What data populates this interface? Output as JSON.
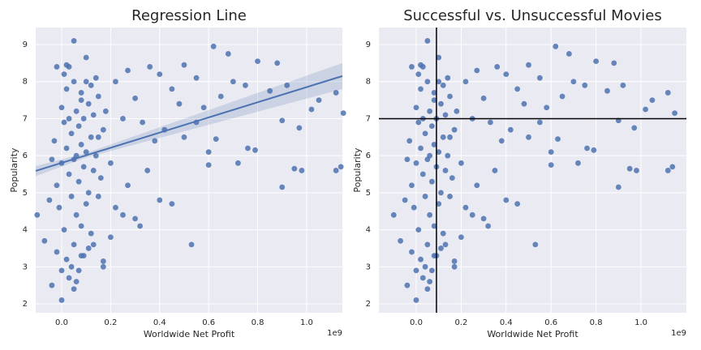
{
  "chart_data": [
    {
      "type": "scatter",
      "title": "Regression Line",
      "x_label": "Worldwide Net Profit",
      "y_label": "Popularity",
      "x_offset_label": "1e9",
      "color": "#4c72b0",
      "grid": true,
      "xlim": [
        -0.106,
        1.146
      ],
      "ylim": [
        1.76,
        9.46
      ],
      "xticks": [
        {
          "value": 0,
          "label": "0.0"
        },
        0.2,
        0.4,
        0.6,
        {
          "value": 0.8,
          "label": "0.8"
        },
        {
          "value": 1,
          "label": "1.0"
        }
      ],
      "yticks": [
        2,
        3,
        4,
        5,
        6,
        7,
        8,
        9
      ],
      "x": [
        0.05,
        0.62,
        0.68,
        0.8,
        0.88,
        0.5,
        0.36,
        0.1,
        -0.02,
        0.02,
        0.27,
        0.4,
        0.55,
        0.7,
        0.75,
        0.85,
        0.92,
        1.05,
        1.12,
        1.15,
        1.02,
        0.9,
        0.97,
        0.65,
        0.58,
        0.45,
        0.48,
        0.3,
        0.25,
        0.33,
        0.38,
        0.42,
        0.5,
        0.55,
        0.6,
        0.63,
        0.76,
        0.79,
        0.6,
        0.9,
        0.95,
        0.98,
        1.12,
        1.14,
        0.72,
        0.45,
        0.53,
        0.4,
        0.3,
        0.32,
        0.25,
        0.2,
        0.17,
        0.17,
        0.11,
        0.13,
        -0.1,
        -0.07,
        -0.04,
        0.0,
        0.05,
        0.03,
        0.08,
        0.07,
        0.35,
        0.27,
        0.22,
        0.2,
        0.15,
        0.18,
        0.12,
        0.14,
        0.22,
        0.08,
        -0.03,
        -0.02,
        -0.01,
        0.0,
        0.0,
        0.01,
        0.01,
        0.02,
        0.02,
        0.02,
        0.03,
        0.03,
        0.04,
        0.04,
        0.05,
        0.05,
        0.05,
        0.06,
        0.06,
        0.06,
        0.07,
        0.07,
        0.08,
        0.08,
        0.08,
        0.09,
        0.09,
        0.1,
        0.1,
        0.11,
        0.11,
        0.12,
        0.12,
        0.13,
        0.13,
        0.14,
        0.15,
        0.15,
        0.16,
        0.17,
        -0.04,
        -0.05,
        -0.02,
        0.0,
        0.01,
        0.03,
        0.04,
        0.06,
        0.09,
        0.1
      ],
      "y": [
        9.1,
        8.95,
        8.75,
        8.55,
        8.5,
        8.45,
        8.4,
        8.65,
        8.4,
        8.45,
        8.3,
        8.2,
        8.1,
        8.0,
        7.9,
        7.75,
        7.9,
        7.5,
        7.7,
        7.15,
        7.25,
        6.95,
        6.75,
        7.6,
        7.3,
        7.8,
        7.4,
        7.55,
        7.0,
        6.9,
        6.4,
        6.7,
        6.5,
        6.9,
        6.1,
        6.45,
        6.2,
        6.15,
        5.75,
        5.15,
        5.65,
        5.6,
        5.6,
        5.7,
        5.8,
        4.7,
        3.6,
        4.8,
        4.3,
        4.1,
        4.4,
        3.8,
        3.0,
        3.15,
        3.5,
        3.6,
        4.4,
        3.7,
        2.5,
        2.1,
        2.4,
        2.7,
        3.3,
        2.9,
        5.6,
        5.2,
        4.6,
        5.8,
        6.5,
        7.2,
        7.9,
        8.1,
        8.0,
        7.5,
        6.4,
        5.2,
        4.6,
        7.3,
        5.8,
        6.9,
        4.0,
        7.8,
        6.2,
        3.2,
        5.5,
        7.0,
        6.6,
        4.9,
        8.0,
        5.9,
        3.6,
        7.2,
        6.0,
        4.4,
        6.8,
        5.3,
        7.7,
        6.3,
        4.1,
        5.7,
        7.0,
        6.1,
        4.7,
        7.4,
        5.0,
        6.5,
        3.9,
        7.1,
        5.6,
        6.0,
        7.6,
        4.9,
        5.4,
        6.7,
        5.9,
        4.8,
        3.4,
        2.9,
        8.2,
        8.4,
        3.0,
        2.6,
        3.3,
        8.0
      ],
      "regression": {
        "x": [
          -0.106,
          0.1,
          1.146
        ],
        "y": [
          5.59,
          6.01,
          8.15
        ],
        "lower": [
          5.45,
          5.95,
          7.8
        ],
        "upper": [
          5.72,
          6.07,
          8.5
        ]
      }
    },
    {
      "type": "scatter",
      "title": "Successful vs. Unsuccessful Movies",
      "x_label": "Worldwide Net Profit",
      "y_label": "Popularity",
      "x_offset_label": "1e9",
      "color": "#4c72b0",
      "grid": true,
      "xlim": [
        -0.166,
        1.202
      ],
      "ylim": [
        1.76,
        9.46
      ],
      "xticks": [
        {
          "value": 0,
          "label": "0.0"
        },
        0.2,
        0.4,
        0.6,
        0.8,
        {
          "value": 1,
          "label": "1.0"
        }
      ],
      "yticks": [
        2,
        3,
        4,
        5,
        6,
        7,
        8,
        9
      ],
      "x": [
        0.05,
        0.62,
        0.68,
        0.8,
        0.88,
        0.5,
        0.36,
        0.1,
        -0.02,
        0.02,
        0.27,
        0.4,
        0.55,
        0.7,
        0.75,
        0.85,
        0.92,
        1.05,
        1.12,
        1.15,
        1.02,
        0.9,
        0.97,
        0.65,
        0.58,
        0.45,
        0.48,
        0.3,
        0.25,
        0.33,
        0.38,
        0.42,
        0.5,
        0.55,
        0.6,
        0.63,
        0.76,
        0.79,
        0.6,
        0.9,
        0.95,
        0.98,
        1.12,
        1.14,
        0.72,
        0.45,
        0.53,
        0.4,
        0.3,
        0.32,
        0.25,
        0.2,
        0.17,
        0.17,
        0.11,
        0.13,
        -0.1,
        -0.07,
        -0.04,
        0.0,
        0.05,
        0.03,
        0.08,
        0.07,
        0.35,
        0.27,
        0.22,
        0.2,
        0.15,
        0.18,
        0.12,
        0.14,
        0.22,
        0.08,
        -0.03,
        -0.02,
        -0.01,
        0.0,
        0.0,
        0.01,
        0.01,
        0.02,
        0.02,
        0.02,
        0.03,
        0.03,
        0.04,
        0.04,
        0.05,
        0.05,
        0.05,
        0.06,
        0.06,
        0.06,
        0.07,
        0.07,
        0.08,
        0.08,
        0.08,
        0.09,
        0.09,
        0.1,
        0.1,
        0.11,
        0.11,
        0.12,
        0.12,
        0.13,
        0.13,
        0.14,
        0.15,
        0.15,
        0.16,
        0.17,
        -0.04,
        -0.05,
        -0.02,
        0.0,
        0.01,
        0.03,
        0.04,
        0.06,
        0.09,
        0.1
      ],
      "y": [
        9.1,
        8.95,
        8.75,
        8.55,
        8.5,
        8.45,
        8.4,
        8.65,
        8.4,
        8.45,
        8.3,
        8.2,
        8.1,
        8.0,
        7.9,
        7.75,
        7.9,
        7.5,
        7.7,
        7.15,
        7.25,
        6.95,
        6.75,
        7.6,
        7.3,
        7.8,
        7.4,
        7.55,
        7.0,
        6.9,
        6.4,
        6.7,
        6.5,
        6.9,
        6.1,
        6.45,
        6.2,
        6.15,
        5.75,
        5.15,
        5.65,
        5.6,
        5.6,
        5.7,
        5.8,
        4.7,
        3.6,
        4.8,
        4.3,
        4.1,
        4.4,
        3.8,
        3.0,
        3.15,
        3.5,
        3.6,
        4.4,
        3.7,
        2.5,
        2.1,
        2.4,
        2.7,
        3.3,
        2.9,
        5.6,
        5.2,
        4.6,
        5.8,
        6.5,
        7.2,
        7.9,
        8.1,
        8.0,
        7.5,
        6.4,
        5.2,
        4.6,
        7.3,
        5.8,
        6.9,
        4.0,
        7.8,
        6.2,
        3.2,
        5.5,
        7.0,
        6.6,
        4.9,
        8.0,
        5.9,
        3.6,
        7.2,
        6.0,
        4.4,
        6.8,
        5.3,
        7.7,
        6.3,
        4.1,
        5.7,
        7.0,
        6.1,
        4.7,
        7.4,
        5.0,
        6.5,
        3.9,
        7.1,
        5.6,
        6.0,
        7.6,
        4.9,
        5.4,
        6.7,
        5.9,
        4.8,
        3.4,
        2.9,
        8.2,
        8.4,
        3.0,
        2.6,
        3.3,
        8.0
      ],
      "hline": 7,
      "vline": 0.09
    }
  ]
}
